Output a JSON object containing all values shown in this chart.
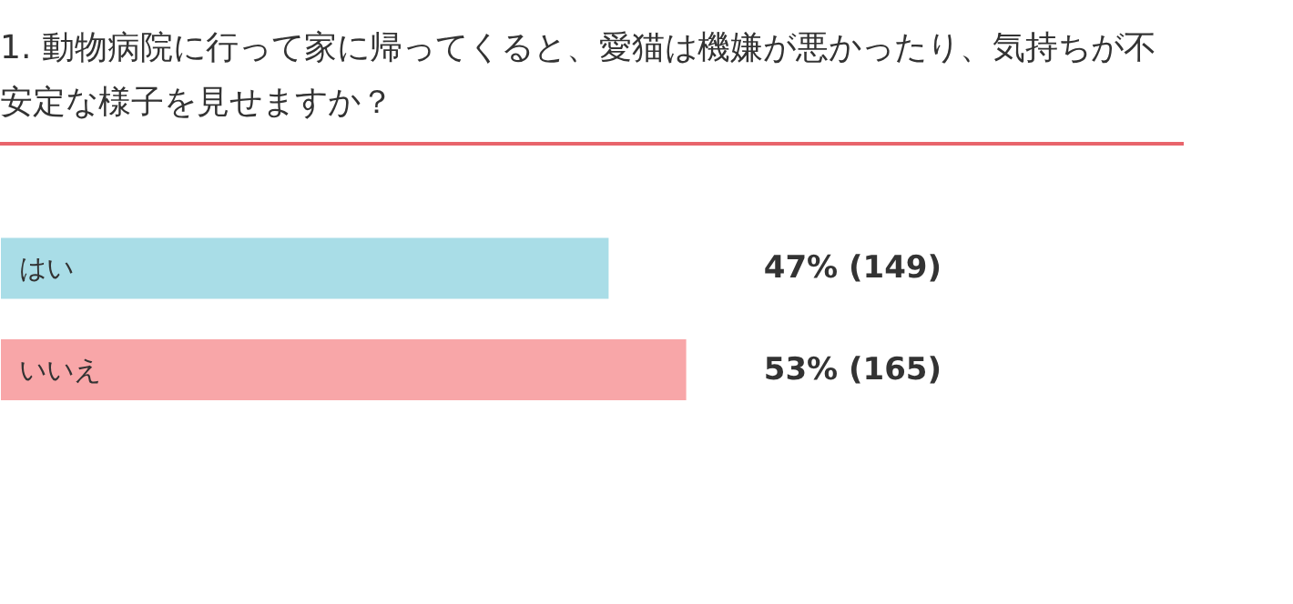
{
  "chart_data": {
    "type": "bar",
    "orientation": "horizontal",
    "title": "1. 動物病院に行って家に帰ってくると、愛猫は機嫌が悪かったり、気持ちが不安定な様子を見せますか？",
    "categories": [
      "はい",
      "いいえ"
    ],
    "values": [
      47,
      53
    ],
    "colors": [
      "#a9dde7",
      "#f8a6a8"
    ],
    "value_labels": [
      "47% (149)",
      "53% (165)"
    ],
    "xlim": [
      0,
      100
    ],
    "tick_labels": false
  }
}
